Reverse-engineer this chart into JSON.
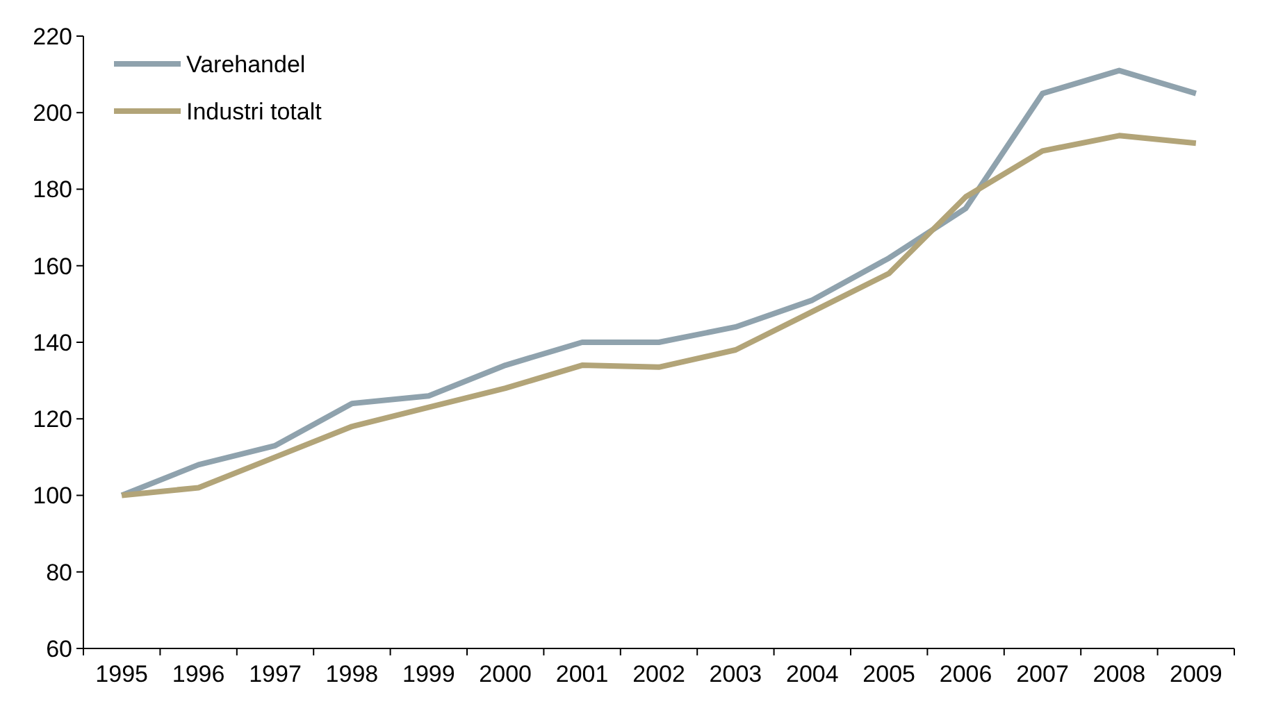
{
  "chart_data": {
    "type": "line",
    "categories": [
      "1995",
      "1996",
      "1997",
      "1998",
      "1999",
      "2000",
      "2001",
      "2002",
      "2003",
      "2004",
      "2005",
      "2006",
      "2007",
      "2008",
      "2009"
    ],
    "series": [
      {
        "name": "Varehandel",
        "color": "#8fa2ad",
        "values": [
          100,
          108,
          113,
          124,
          126,
          134,
          140,
          140,
          144,
          151,
          162,
          175,
          205,
          211,
          205
        ]
      },
      {
        "name": "Industri totalt",
        "color": "#b2a478",
        "values": [
          100,
          102,
          110,
          118,
          123,
          128,
          134,
          133.5,
          138,
          148,
          158,
          178,
          190,
          194,
          192
        ]
      }
    ],
    "ylim": [
      60,
      220
    ],
    "yticks": [
      60,
      80,
      100,
      120,
      140,
      160,
      180,
      200,
      220
    ],
    "grid": false,
    "legend": "top left",
    "marker": "none",
    "line_style": "solid"
  }
}
